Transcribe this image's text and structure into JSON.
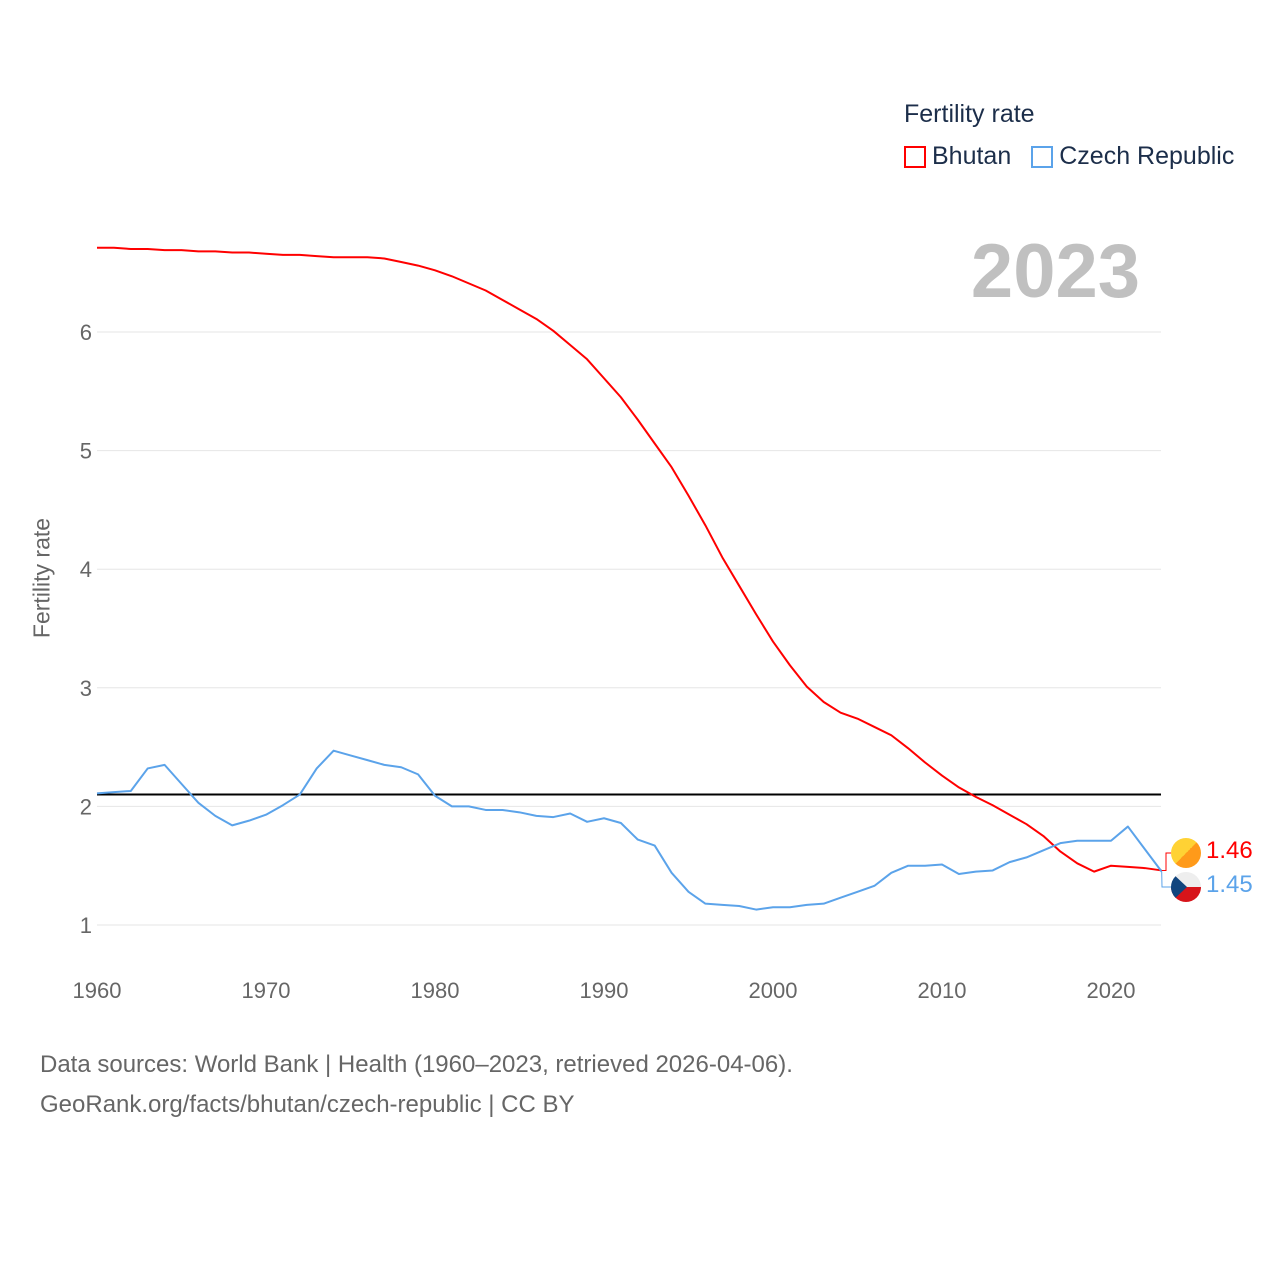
{
  "chart_data": {
    "type": "line",
    "title": "Fertility rate",
    "ylabel": "Fertility rate",
    "xlabel": "",
    "xlim": [
      1960,
      2023
    ],
    "ylim": [
      0.7,
      7.2
    ],
    "xticks": [
      1960,
      1970,
      1980,
      1990,
      2000,
      2010,
      2020
    ],
    "yticks": [
      1,
      2,
      3,
      4,
      5,
      6
    ],
    "grid": true,
    "legend_position": "top-right",
    "reference_line": 2.1,
    "current_year": "2023",
    "x": [
      1960,
      1961,
      1962,
      1963,
      1964,
      1965,
      1966,
      1967,
      1968,
      1969,
      1970,
      1971,
      1972,
      1973,
      1974,
      1975,
      1976,
      1977,
      1978,
      1979,
      1980,
      1981,
      1982,
      1983,
      1984,
      1985,
      1986,
      1987,
      1988,
      1989,
      1990,
      1991,
      1992,
      1993,
      1994,
      1995,
      1996,
      1997,
      1998,
      1999,
      2000,
      2001,
      2002,
      2003,
      2004,
      2005,
      2006,
      2007,
      2008,
      2009,
      2010,
      2011,
      2012,
      2013,
      2014,
      2015,
      2016,
      2017,
      2018,
      2019,
      2020,
      2021,
      2022,
      2023
    ],
    "series": [
      {
        "name": "Bhutan",
        "color": "#ff0000",
        "end_label": "1.46",
        "values": [
          6.71,
          6.71,
          6.7,
          6.7,
          6.69,
          6.69,
          6.68,
          6.68,
          6.67,
          6.67,
          6.66,
          6.65,
          6.65,
          6.64,
          6.63,
          6.63,
          6.63,
          6.62,
          6.59,
          6.56,
          6.52,
          6.47,
          6.41,
          6.35,
          6.27,
          6.19,
          6.11,
          6.01,
          5.89,
          5.77,
          5.61,
          5.45,
          5.26,
          5.06,
          4.86,
          4.62,
          4.37,
          4.1,
          3.86,
          3.62,
          3.39,
          3.19,
          3.01,
          2.88,
          2.79,
          2.74,
          2.67,
          2.6,
          2.49,
          2.37,
          2.26,
          2.16,
          2.08,
          2.01,
          1.93,
          1.85,
          1.75,
          1.62,
          1.52,
          1.45,
          1.5,
          1.49,
          1.48,
          1.46
        ]
      },
      {
        "name": "Czech Republic",
        "color": "#5ba3ea",
        "end_label": "1.45",
        "values": [
          2.11,
          2.12,
          2.13,
          2.32,
          2.35,
          2.19,
          2.03,
          1.92,
          1.84,
          1.88,
          1.93,
          2.01,
          2.1,
          2.32,
          2.47,
          2.43,
          2.39,
          2.35,
          2.33,
          2.27,
          2.09,
          2.0,
          2.0,
          1.97,
          1.97,
          1.95,
          1.92,
          1.91,
          1.94,
          1.87,
          1.9,
          1.86,
          1.72,
          1.67,
          1.44,
          1.28,
          1.18,
          1.17,
          1.16,
          1.13,
          1.15,
          1.15,
          1.17,
          1.18,
          1.23,
          1.28,
          1.33,
          1.44,
          1.5,
          1.5,
          1.51,
          1.43,
          1.45,
          1.46,
          1.53,
          1.57,
          1.63,
          1.69,
          1.71,
          1.71,
          1.71,
          1.83,
          1.64,
          1.45
        ]
      }
    ]
  },
  "footer": {
    "line1": "Data sources: World Bank | Health (1960–2023, retrieved 2026-04-06).",
    "line2": "GeoRank.org/facts/bhutan/czech-republic | CC BY"
  }
}
